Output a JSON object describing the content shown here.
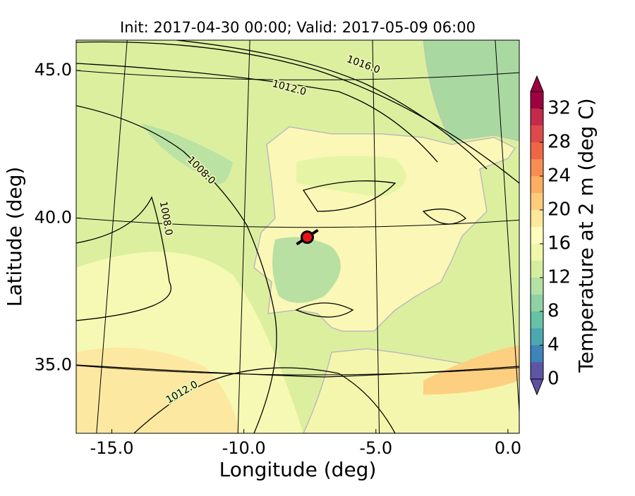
{
  "chart_data": {
    "type": "contour-map",
    "title": "Init: 2017-04-30 00:00; Valid: 2017-05-09 06:00",
    "xlabel": "Longitude (deg)",
    "ylabel": "Latitude (deg)",
    "xlim": [
      -16.35,
      0.43
    ],
    "ylim": [
      32.7,
      46.03
    ],
    "xticks": [
      {
        "value": -15,
        "label": "-15.0"
      },
      {
        "value": -10,
        "label": "-10.0"
      },
      {
        "value": -5,
        "label": "-5.0"
      },
      {
        "value": 0,
        "label": "0.0"
      }
    ],
    "yticks": [
      {
        "value": 35,
        "label": "35.0"
      },
      {
        "value": 40,
        "label": "40.0"
      },
      {
        "value": 45,
        "label": "45.0"
      }
    ],
    "contour_labels": [
      "1016.0",
      "1012.0",
      "1008.0",
      "1008.0",
      "1012.0"
    ],
    "marker": {
      "x": -7.6,
      "y": 39.35,
      "color": "#e8141a"
    },
    "colorbar": {
      "label": "Temperature at 2 m (deg C)",
      "lim": [
        0,
        34
      ],
      "levels": [
        0,
        2,
        4,
        6,
        8,
        10,
        12,
        14,
        16,
        18,
        20,
        22,
        24,
        26,
        28,
        30,
        32,
        34
      ],
      "colors": [
        "#5e55a5",
        "#3d84b8",
        "#4da7b0",
        "#66c2a5",
        "#8fd1a4",
        "#b3e0a3",
        "#d4ee9e",
        "#eef8a8",
        "#fffdbe",
        "#fee89a",
        "#fdcc7a",
        "#fdae61",
        "#f88d52",
        "#ef6645",
        "#dc4a4c",
        "#c42a4b",
        "#9e0142"
      ],
      "under_color": "#5e4fa2",
      "over_color": "#9e0142",
      "ticks": [
        0,
        4,
        8,
        12,
        16,
        20,
        24,
        28,
        32
      ]
    }
  }
}
